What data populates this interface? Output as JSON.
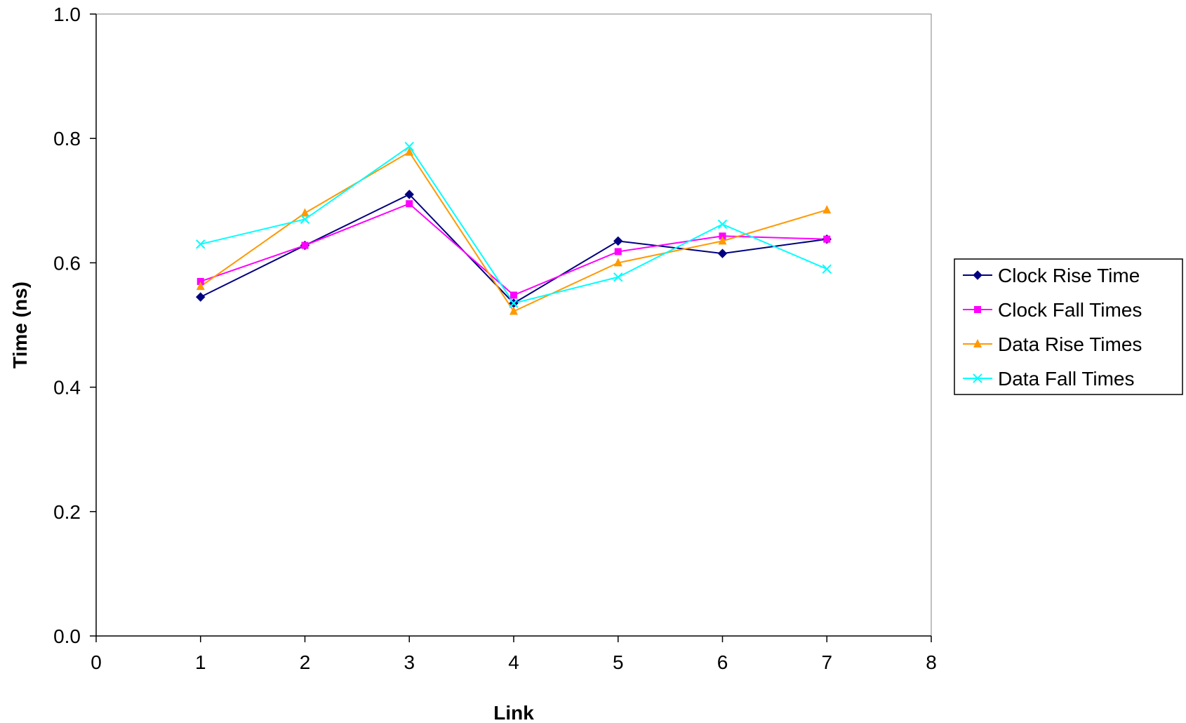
{
  "chart_data": {
    "type": "scatter",
    "xlabel": "Link",
    "ylabel": "Time (ns)",
    "xlim": [
      0,
      8
    ],
    "ylim": [
      0.0,
      1.0
    ],
    "x_ticks": [
      "0",
      "1",
      "2",
      "3",
      "4",
      "5",
      "6",
      "7",
      "8"
    ],
    "y_ticks": [
      "0.0",
      "0.2",
      "0.4",
      "0.6",
      "0.8",
      "1.0"
    ],
    "grid": false,
    "legend_position": "right",
    "x": [
      1,
      2,
      3,
      4,
      5,
      6,
      7
    ],
    "series": [
      {
        "name": "Clock Rise Time",
        "color": "#000080",
        "marker": "diamond",
        "values": [
          0.545,
          0.628,
          0.71,
          0.535,
          0.635,
          0.615,
          0.638
        ]
      },
      {
        "name": "Clock Fall Times",
        "color": "#ff00ff",
        "marker": "square",
        "values": [
          0.57,
          0.628,
          0.695,
          0.548,
          0.618,
          0.643,
          0.638
        ]
      },
      {
        "name": "Data Rise Times",
        "color": "#ff9900",
        "marker": "triangle",
        "values": [
          0.562,
          0.68,
          0.778,
          0.522,
          0.6,
          0.635,
          0.685
        ]
      },
      {
        "name": "Data Fall Times",
        "color": "#00ffff",
        "marker": "x",
        "values": [
          0.63,
          0.67,
          0.787,
          0.535,
          0.577,
          0.662,
          0.59
        ]
      }
    ]
  }
}
